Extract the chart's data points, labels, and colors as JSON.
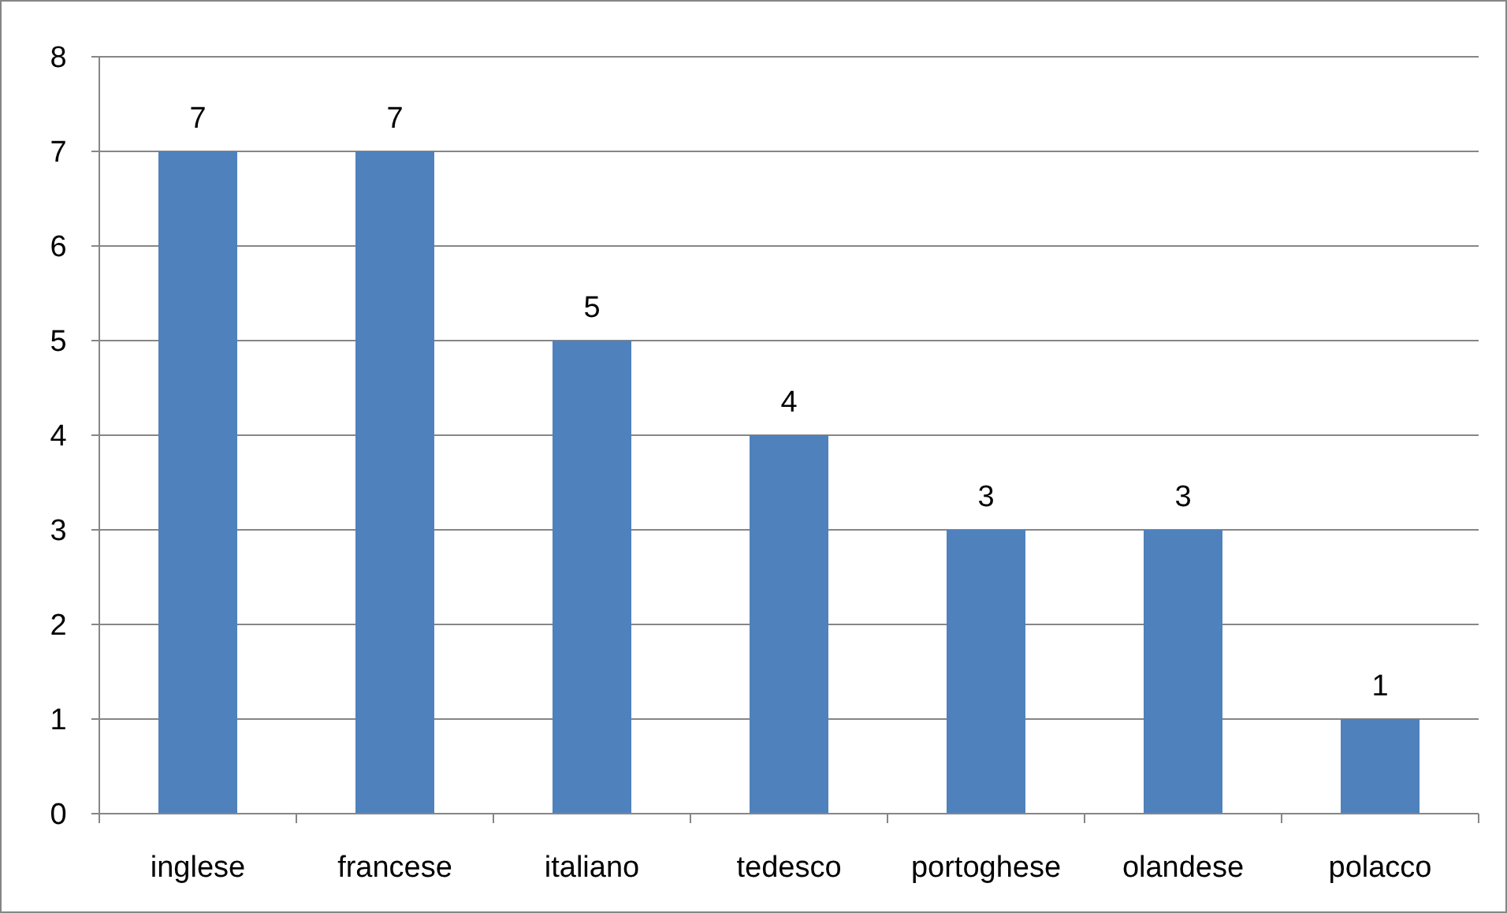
{
  "chart_data": {
    "type": "bar",
    "categories": [
      "inglese",
      "francese",
      "italiano",
      "tedesco",
      "portoghese",
      "olandese",
      "polacco"
    ],
    "values": [
      7,
      7,
      5,
      4,
      3,
      3,
      1
    ],
    "color": "#4f81bd",
    "ylim": [
      0,
      8
    ],
    "yticks": [
      0,
      1,
      2,
      3,
      4,
      5,
      6,
      7,
      8
    ],
    "grid": "y",
    "data_labels": true
  }
}
